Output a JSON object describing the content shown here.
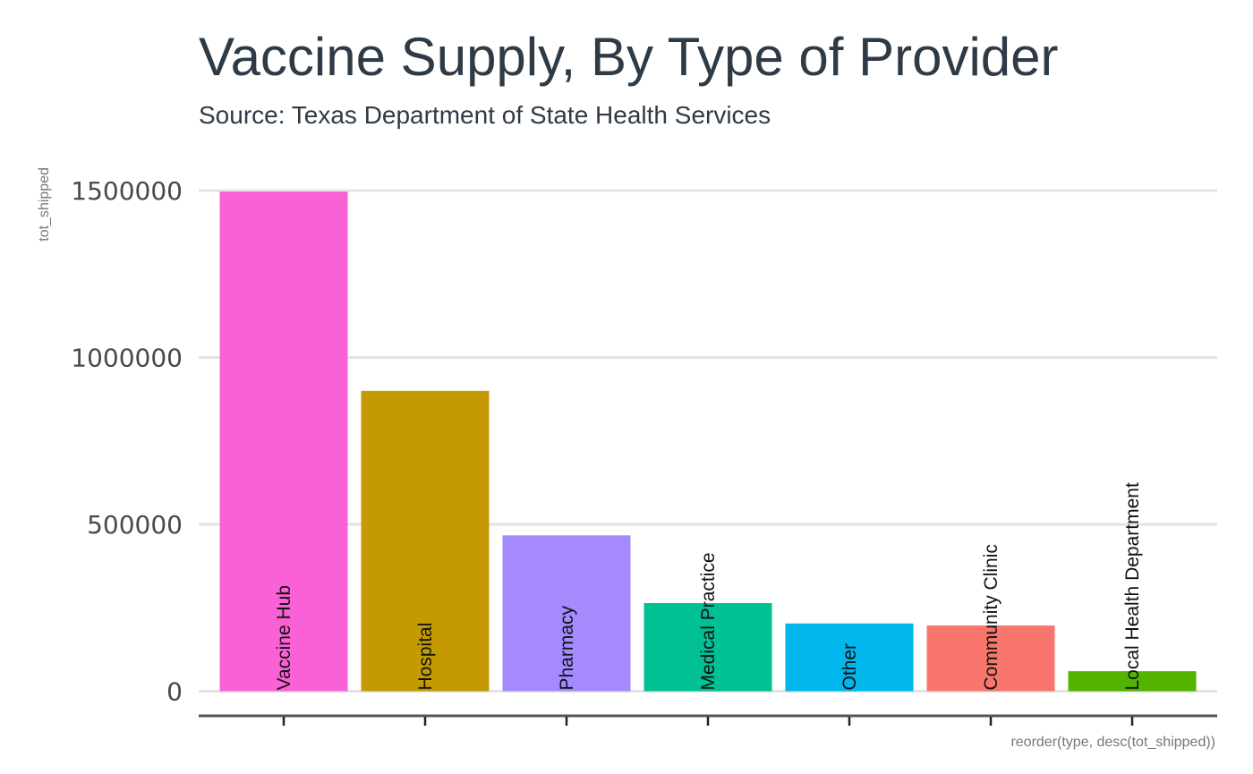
{
  "chart_data": {
    "type": "bar",
    "title": "Vaccine Supply, By Type of Provider",
    "subtitle": "Source: Texas Department of State Health Services",
    "xlabel": "reorder(type, desc(tot_shipped))",
    "ylabel": "tot_shipped",
    "categories": [
      "Vaccine Hub",
      "Hospital",
      "Pharmacy",
      "Medical Practice",
      "Other",
      "Community Clinic",
      "Local Health Department"
    ],
    "values": [
      1497000,
      900000,
      467000,
      264000,
      203000,
      197000,
      60000
    ],
    "colors": [
      "#fb61d7",
      "#c49a00",
      "#a58aff",
      "#00c094",
      "#00b6eb",
      "#f8766d",
      "#53b400"
    ],
    "ylim": [
      0,
      1500000
    ],
    "yticks": [
      0,
      500000,
      1000000,
      1500000
    ],
    "ytick_labels": [
      "0",
      "500000",
      "1000000",
      "1500000"
    ],
    "grid": "horizontal",
    "legend": "none"
  }
}
